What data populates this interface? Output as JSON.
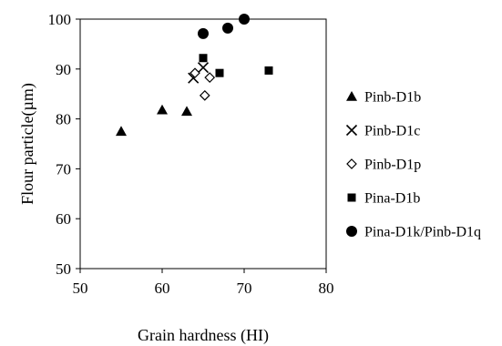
{
  "chart_data": {
    "type": "scatter",
    "title": "",
    "xlabel": "Grain hardness (HI)",
    "ylabel": "Flour particle(µm)",
    "xlim": [
      50,
      80
    ],
    "ylim": [
      50,
      100
    ],
    "xticks": [
      "50",
      "60",
      "70",
      "80"
    ],
    "yticks": [
      "50",
      "60",
      "70",
      "80",
      "90",
      "100"
    ],
    "grid": false,
    "legend_position": "right",
    "series": [
      {
        "name": "Pinb-D1b",
        "marker": "triangle",
        "color": "#000000",
        "points": [
          {
            "x": 55,
            "y": 77.5
          },
          {
            "x": 60,
            "y": 81.8
          },
          {
            "x": 63,
            "y": 81.5
          }
        ]
      },
      {
        "name": "Pinb-D1c",
        "marker": "x",
        "color": "#000000",
        "points": [
          {
            "x": 63.8,
            "y": 88.2
          },
          {
            "x": 65,
            "y": 90.3
          }
        ]
      },
      {
        "name": "Pinb-D1p",
        "marker": "diamond-open",
        "color": "#000000",
        "points": [
          {
            "x": 64,
            "y": 89.2
          },
          {
            "x": 65.8,
            "y": 88.3
          },
          {
            "x": 65.2,
            "y": 84.7
          }
        ]
      },
      {
        "name": "Pina-D1b",
        "marker": "square",
        "color": "#000000",
        "points": [
          {
            "x": 65,
            "y": 92.2
          },
          {
            "x": 67,
            "y": 89.2
          },
          {
            "x": 73,
            "y": 89.7
          }
        ]
      },
      {
        "name": "Pina-D1k/Pinb-D1q",
        "marker": "circle",
        "color": "#000000",
        "points": [
          {
            "x": 65,
            "y": 97.1
          },
          {
            "x": 68,
            "y": 98.2
          },
          {
            "x": 70,
            "y": 100
          }
        ]
      }
    ]
  }
}
